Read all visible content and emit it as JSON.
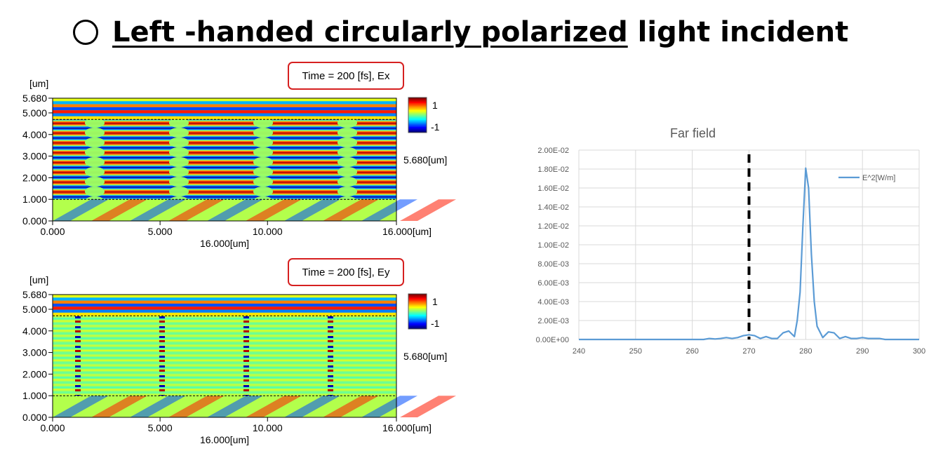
{
  "title": {
    "underlined": "Left -handed circularly polarized",
    "rest": " light incident"
  },
  "chart_data": [
    {
      "type": "heatmap",
      "name": "Ex",
      "annotation": "Time = 200 [fs], Ex",
      "y_unit_label": "[um]",
      "y_ticks": [
        "0.000",
        "1.000",
        "2.000",
        "3.000",
        "4.000",
        "5.000",
        "5.680"
      ],
      "x_ticks": [
        "0.000",
        "5.000",
        "10.000",
        "16.000[um]"
      ],
      "xlabel": "16.000[um]",
      "height_label": "5.680[um]",
      "xlim": [
        0,
        16
      ],
      "ylim": [
        0,
        5.68
      ],
      "colorbar_ticks": [
        "1",
        "-1"
      ],
      "colorbar_range": [
        -1,
        1
      ],
      "dashed_lines_y": [
        1.0,
        4.7
      ]
    },
    {
      "type": "heatmap",
      "name": "Ey",
      "annotation": "Time = 200 [fs], Ey",
      "y_unit_label": "[um]",
      "y_ticks": [
        "0.000",
        "1.000",
        "2.000",
        "3.000",
        "4.000",
        "5.000",
        "5.680"
      ],
      "x_ticks": [
        "0.000",
        "5.000",
        "10.000",
        "16.000[um]"
      ],
      "xlabel": "16.000[um]",
      "height_label": "5.680[um]",
      "xlim": [
        0,
        16
      ],
      "ylim": [
        0,
        5.68
      ],
      "colorbar_ticks": [
        "1",
        "-1"
      ],
      "colorbar_range": [
        -1,
        1
      ],
      "dashed_lines_y": [
        1.0,
        4.7
      ]
    },
    {
      "type": "line",
      "title": "Far field",
      "legend": "top-right",
      "grid": true,
      "xlim": [
        240,
        300
      ],
      "ylim": [
        0,
        0.02
      ],
      "x_ticks": [
        "240",
        "250",
        "260",
        "270",
        "280",
        "290",
        "300"
      ],
      "y_ticks": [
        "0.00E+00",
        "2.00E-03",
        "4.00E-03",
        "6.00E-03",
        "8.00E-03",
        "1.00E-02",
        "1.20E-02",
        "1.40E-02",
        "1.60E-02",
        "1.80E-02",
        "2.00E-02"
      ],
      "reference_line_x": 270,
      "series": [
        {
          "name": "E^2[W/m]",
          "color": "#5b9bd5",
          "x": [
            240,
            250,
            260,
            262,
            263,
            264,
            265,
            266,
            267,
            268,
            269,
            270,
            271,
            272,
            273,
            274,
            275,
            276,
            277,
            278,
            278.5,
            279,
            279.5,
            280,
            280.5,
            281,
            281.5,
            282,
            283,
            284,
            285,
            286,
            287,
            288,
            289,
            290,
            291,
            292,
            293,
            294,
            300
          ],
          "y": [
            0,
            0,
            0,
            0,
            0.0001,
            5e-05,
            0.0001,
            0.0002,
            0.0001,
            0.0002,
            0.0004,
            0.0005,
            0.0004,
            0.0001,
            0.0003,
            0.0001,
            0.0001,
            0.0007,
            0.0009,
            0.0003,
            0.002,
            0.005,
            0.012,
            0.0181,
            0.016,
            0.009,
            0.004,
            0.0014,
            0.0002,
            0.0008,
            0.0007,
            0.0001,
            0.0003,
            0.0001,
            0.0001,
            0.0002,
            0.0001,
            0.0001,
            0.0001,
            0,
            0
          ]
        }
      ]
    }
  ]
}
